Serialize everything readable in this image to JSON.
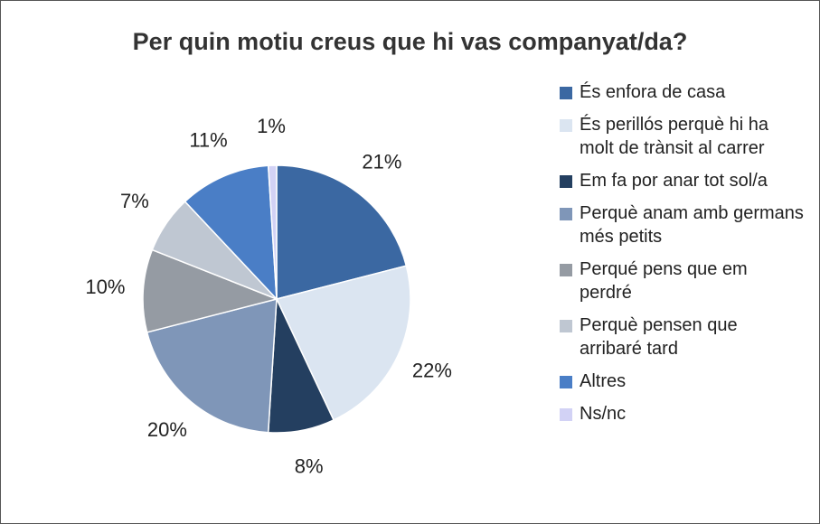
{
  "chart_data": {
    "type": "pie",
    "title": "Per quin motiu creus que hi vas companyat/da?",
    "categories": [
      "És enfora de casa",
      "És perillós perquè hi ha molt de trànsit al carrer",
      "Em fa por anar tot sol/a",
      "Perquè anam amb germans més petits",
      "Perqué pens que em perdré",
      "Perquè pensen que arribaré tard",
      "Altres",
      "Ns/nc"
    ],
    "values": [
      21,
      22,
      8,
      20,
      10,
      7,
      11,
      1
    ],
    "value_labels": [
      "21%",
      "22%",
      "8%",
      "20%",
      "10%",
      "7%",
      "11%",
      "1%"
    ],
    "colors": [
      "#3b68a2",
      "#dbe5f1",
      "#243f60",
      "#7f96b8",
      "#959ba3",
      "#bfc7d2",
      "#4a7ec6",
      "#d2d2f5"
    ],
    "legend": "right"
  }
}
